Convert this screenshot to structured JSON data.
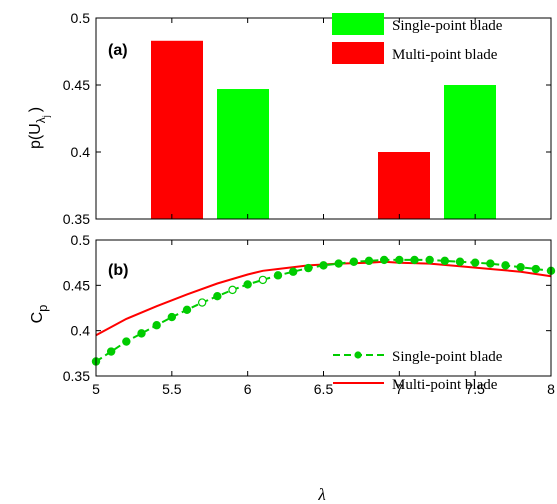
{
  "chart_data": [
    {
      "panel_label": "(a)",
      "type": "bar",
      "xlabel": "",
      "ylabel_main": "p(U",
      "ylabel_sub": "λ",
      "ylabel_subsub": "j",
      "ylabel_close": ")",
      "ylim": [
        0.35,
        0.5
      ],
      "yticks": [
        "0.35",
        "0.4",
        "0.45",
        "0.5"
      ],
      "yticks_values": [
        0.35,
        0.4,
        0.45,
        0.5
      ],
      "groups": [
        {
          "bars": [
            {
              "series": "Multi-point blade",
              "value": 0.483
            },
            {
              "series": "Single-point blade",
              "value": 0.447
            }
          ]
        },
        {
          "bars": [
            {
              "series": "Multi-point blade",
              "value": 0.4
            },
            {
              "series": "Single-point blade",
              "value": 0.45
            }
          ]
        }
      ],
      "legend": [
        {
          "name": "Single-point blade",
          "color": "#00ff00"
        },
        {
          "name": "Multi-point blade",
          "color": "#ff0000"
        }
      ],
      "legend_position": "top-right"
    },
    {
      "panel_label": "(b)",
      "type": "line",
      "xlabel": "λ",
      "ylabel_main": "C",
      "ylabel_sub": "p",
      "xlim": [
        5,
        8
      ],
      "ylim": [
        0.35,
        0.5
      ],
      "xticks": [
        "5",
        "5.5",
        "6",
        "6.5",
        "7",
        "7.5",
        "8"
      ],
      "xticks_values": [
        5,
        5.5,
        6,
        6.5,
        7,
        7.5,
        8
      ],
      "yticks": [
        "0.35",
        "0.4",
        "0.45",
        "0.5"
      ],
      "yticks_values": [
        0.35,
        0.4,
        0.45,
        0.5
      ],
      "series": [
        {
          "name": "Single-point blade",
          "color": "#00cc00",
          "style": "dashed-with-markers",
          "x": [
            5.0,
            5.1,
            5.2,
            5.3,
            5.4,
            5.5,
            5.6,
            5.7,
            5.8,
            5.9,
            6.0,
            6.1,
            6.2,
            6.3,
            6.4,
            6.5,
            6.6,
            6.7,
            6.8,
            6.9,
            7.0,
            7.1,
            7.2,
            7.3,
            7.4,
            7.5,
            7.6,
            7.7,
            7.8,
            7.9,
            8.0
          ],
          "y": [
            0.366,
            0.377,
            0.388,
            0.397,
            0.406,
            0.415,
            0.423,
            0.431,
            0.438,
            0.445,
            0.451,
            0.456,
            0.461,
            0.465,
            0.469,
            0.472,
            0.474,
            0.476,
            0.477,
            0.478,
            0.478,
            0.478,
            0.478,
            0.477,
            0.476,
            0.475,
            0.474,
            0.472,
            0.47,
            0.468,
            0.466
          ]
        },
        {
          "name": "Multi-point blade",
          "color": "#ff0000",
          "style": "solid",
          "x": [
            5.0,
            5.2,
            5.4,
            5.6,
            5.8,
            6.0,
            6.1,
            6.2,
            6.4,
            6.6,
            6.8,
            6.9,
            7.0,
            7.2,
            7.4,
            7.6,
            7.8,
            8.0
          ],
          "y": [
            0.395,
            0.413,
            0.427,
            0.44,
            0.452,
            0.462,
            0.466,
            0.468,
            0.472,
            0.474,
            0.475,
            0.476,
            0.475,
            0.474,
            0.471,
            0.468,
            0.465,
            0.46
          ]
        }
      ],
      "legend_position": "bottom-right"
    }
  ]
}
